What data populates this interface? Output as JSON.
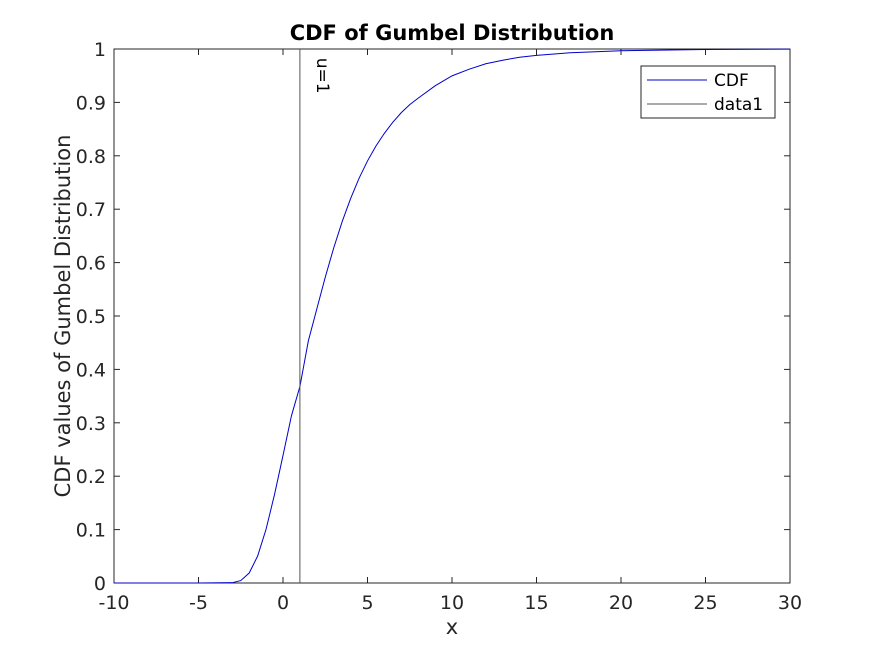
{
  "chart_data": {
    "type": "line",
    "title": "CDF of Gumbel Distribution",
    "xlabel": "x",
    "ylabel": "CDF values of Gumbel Distribution",
    "xlim": [
      -10,
      30
    ],
    "ylim": [
      0,
      1
    ],
    "xticks": [
      -10,
      -5,
      0,
      5,
      10,
      15,
      20,
      25,
      30
    ],
    "yticks": [
      0,
      0.1,
      0.2,
      0.3,
      0.4,
      0.5,
      0.6,
      0.7,
      0.8,
      0.9,
      1
    ],
    "xtick_labels": [
      "-10",
      "-5",
      "0",
      "5",
      "10",
      "15",
      "20",
      "25",
      "30"
    ],
    "ytick_labels": [
      "0",
      "0.1",
      "0.2",
      "0.3",
      "0.4",
      "0.5",
      "0.6",
      "0.7",
      "0.8",
      "0.9",
      "1"
    ],
    "grid": false,
    "legend": {
      "placement": "top-right",
      "entries": [
        "CDF",
        "data1"
      ]
    },
    "series": [
      {
        "name": "CDF",
        "color": "#0000cc",
        "x": [
          -10,
          -5,
          -3,
          -2.5,
          -2,
          -1.5,
          -1,
          -0.5,
          0,
          0.5,
          1,
          1.5,
          2,
          2.5,
          3,
          3.5,
          4,
          4.5,
          5,
          5.5,
          6,
          6.5,
          7,
          7.5,
          8,
          9,
          10,
          11,
          12,
          13,
          14,
          15,
          17,
          20,
          25,
          30
        ],
        "y": [
          0,
          0,
          0.0006,
          0.0045,
          0.0187,
          0.0505,
          0.1009,
          0.1659,
          0.2387,
          0.3131,
          0.3679,
          0.4534,
          0.5132,
          0.5726,
          0.6274,
          0.6766,
          0.72,
          0.7578,
          0.7904,
          0.8183,
          0.8422,
          0.863,
          0.8808,
          0.8958,
          0.908,
          0.931,
          0.9497,
          0.962,
          0.9724,
          0.979,
          0.9845,
          0.988,
          0.993,
          0.9968,
          0.9991,
          0.9998
        ]
      },
      {
        "name": "data1",
        "color": "#555555",
        "x": [
          1,
          1
        ],
        "y": [
          0,
          1
        ]
      }
    ],
    "annotations": [
      {
        "text": "u=1",
        "x": 1,
        "y": 0.95,
        "rotation": 90
      }
    ]
  }
}
